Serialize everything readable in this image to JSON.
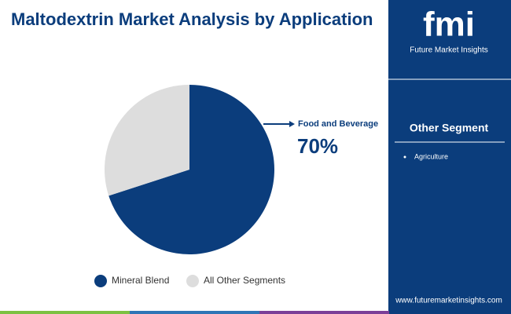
{
  "chart_data": {
    "type": "pie",
    "title": "Maltodextrin Market Analysis by Application",
    "categories": [
      "Mineral Blend",
      "All Other Segments"
    ],
    "values": [
      70,
      30
    ],
    "value_labels": [
      "70%",
      null
    ],
    "colors": [
      "#0b3d7c",
      "#dddddd"
    ],
    "annotation": "Food and Beverage"
  },
  "sidebar": {
    "logo": "fmi",
    "brand": "Future Market Insights",
    "heading": "Other Segment",
    "items": [
      "Agriculture"
    ],
    "website": "www.futuremarketinsights.com"
  }
}
